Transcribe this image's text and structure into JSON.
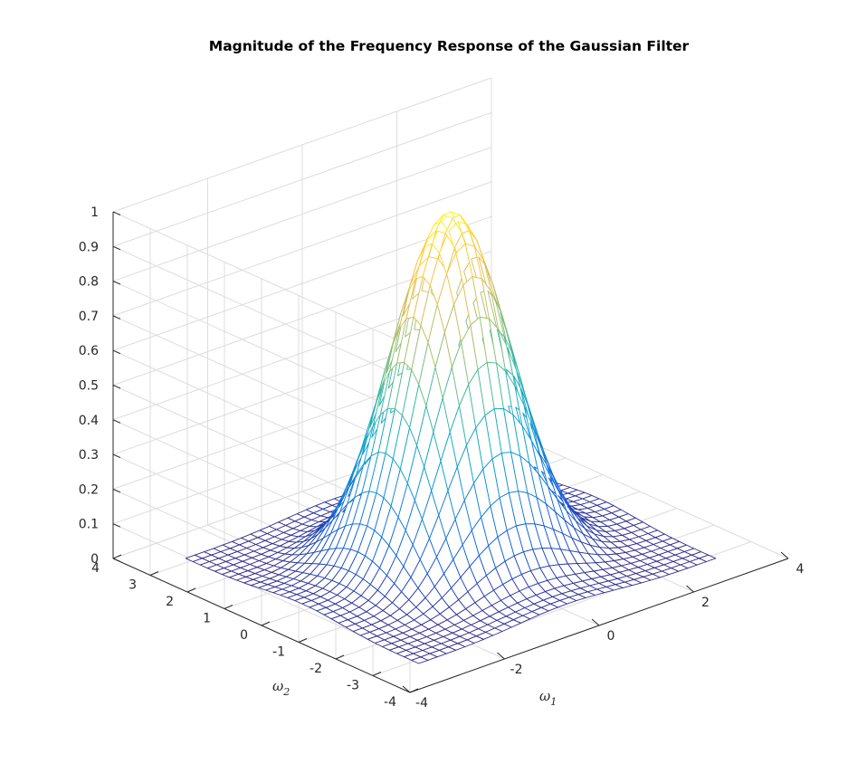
{
  "chart_data": {
    "type": "surface-mesh",
    "title": "Magnitude of the Frequency Response of the Gaussian Filter",
    "xlabel": "ω1",
    "xlabel_symbol": "ω",
    "xlabel_sub": "1",
    "ylabel": "ω2",
    "ylabel_symbol": "ω",
    "ylabel_sub": "2",
    "zlabel": "",
    "xlim": [
      -4,
      4
    ],
    "ylim": [
      -4,
      4
    ],
    "zlim": [
      0,
      1
    ],
    "x_ticks": [
      -4,
      -2,
      0,
      2,
      4
    ],
    "y_ticks": [
      -4,
      -3,
      -2,
      -1,
      0,
      1,
      2,
      3,
      4
    ],
    "z_ticks": [
      0,
      0.1,
      0.2,
      0.3,
      0.4,
      0.5,
      0.6,
      0.7,
      0.8,
      0.9,
      1
    ],
    "x_tick_labels": [
      "-4",
      "-2",
      "0",
      "2",
      "4"
    ],
    "y_tick_labels": [
      "-4",
      "-3",
      "-2",
      "-1",
      "0",
      "1",
      "2",
      "3",
      "4"
    ],
    "z_tick_labels": [
      "0",
      "0.1",
      "0.2",
      "0.3",
      "0.4",
      "0.5",
      "0.6",
      "0.7",
      "0.8",
      "0.9",
      "1"
    ],
    "mesh_range": [
      -3.14,
      3.14
    ],
    "mesh_points": 33,
    "peak_value": 1.0,
    "peak_at": [
      0,
      0
    ],
    "colormap": "parula",
    "colormap_stops": [
      "#352a87",
      "#0f5cdd",
      "#1481d6",
      "#06a4ca",
      "#2eb7a4",
      "#87bf77",
      "#d1bb59",
      "#fec832",
      "#f9fb0e"
    ],
    "grid": true
  }
}
